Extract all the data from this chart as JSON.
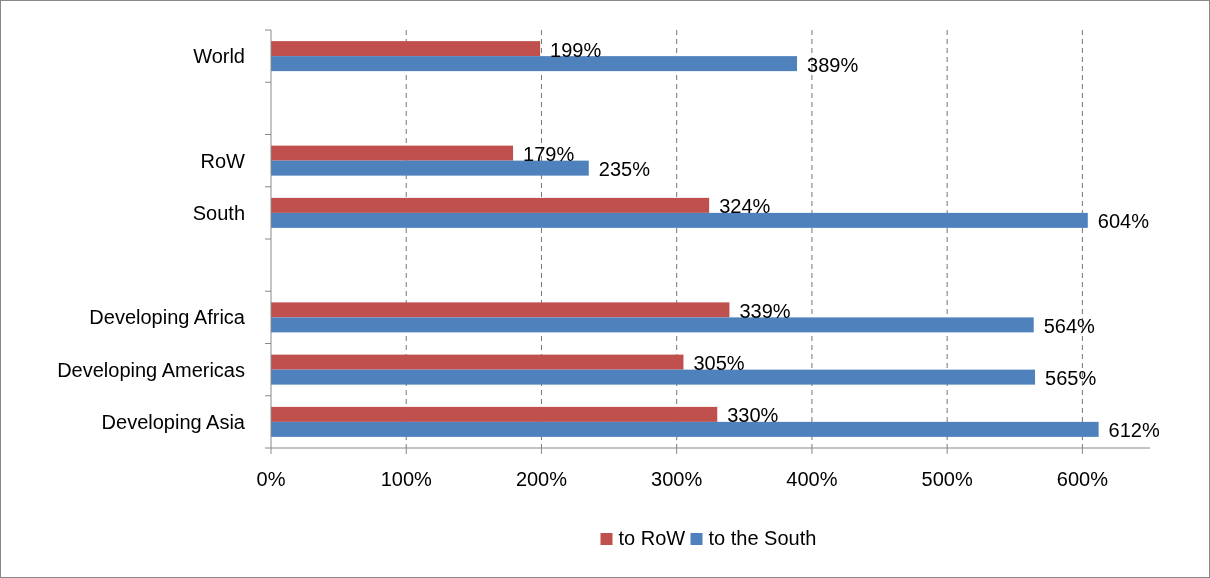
{
  "chart_data": {
    "type": "bar",
    "orientation": "horizontal",
    "categories": [
      "World",
      null,
      "RoW",
      "South",
      null,
      "Developing Africa",
      "Developing Americas",
      "Developing Asia"
    ],
    "series": [
      {
        "name": "to RoW",
        "color": "#c0504d",
        "values": [
          199,
          null,
          179,
          324,
          null,
          339,
          305,
          330
        ],
        "value_labels": [
          "199%",
          null,
          "179%",
          "324%",
          null,
          "339%",
          "305%",
          "330%"
        ]
      },
      {
        "name": "to the South",
        "color": "#4f81bd",
        "values": [
          389,
          null,
          235,
          604,
          null,
          564,
          565,
          612
        ],
        "value_labels": [
          "389%",
          null,
          "235%",
          "604%",
          null,
          "564%",
          "565%",
          "612%"
        ]
      }
    ],
    "xlim": [
      0,
      650
    ],
    "xticks": [
      {
        "value": 0,
        "label": "0%"
      },
      {
        "value": 100,
        "label": "100%"
      },
      {
        "value": 200,
        "label": "200%"
      },
      {
        "value": 300,
        "label": "300%"
      },
      {
        "value": 400,
        "label": "400%"
      },
      {
        "value": 500,
        "label": "500%"
      },
      {
        "value": 600,
        "label": "600%"
      }
    ],
    "grid": "x",
    "legend": "bottom"
  }
}
